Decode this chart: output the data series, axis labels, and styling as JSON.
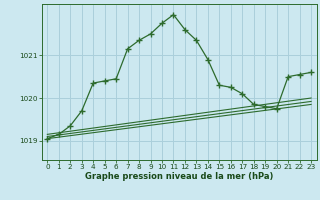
{
  "title": "Graphe pression niveau de la mer (hPa)",
  "bg_color": "#cce8f0",
  "grid_color": "#aacfdb",
  "line_color": "#2d6b2d",
  "marker": "+",
  "xlim": [
    -0.5,
    23.5
  ],
  "ylim": [
    1018.55,
    1022.2
  ],
  "yticks": [
    1019,
    1020,
    1021
  ],
  "xticks": [
    0,
    1,
    2,
    3,
    4,
    5,
    6,
    7,
    8,
    9,
    10,
    11,
    12,
    13,
    14,
    15,
    16,
    17,
    18,
    19,
    20,
    21,
    22,
    23
  ],
  "main_series_x": [
    0,
    1,
    2,
    3,
    4,
    5,
    6,
    7,
    8,
    9,
    10,
    11,
    12,
    13,
    14,
    15,
    16,
    17,
    18,
    19,
    20,
    21,
    22,
    23
  ],
  "main_series_y": [
    1019.05,
    1019.15,
    1019.35,
    1019.7,
    1020.35,
    1020.4,
    1020.45,
    1021.15,
    1021.35,
    1021.5,
    1021.75,
    1021.95,
    1021.6,
    1021.35,
    1020.9,
    1020.3,
    1020.25,
    1020.1,
    1019.85,
    1019.8,
    1019.75,
    1020.5,
    1020.55,
    1020.6
  ],
  "flat_series1_x": [
    0,
    23
  ],
  "flat_series1_y": [
    1019.05,
    1019.85
  ],
  "flat_series2_x": [
    0,
    23
  ],
  "flat_series2_y": [
    1019.1,
    1019.92
  ],
  "flat_series3_x": [
    0,
    23
  ],
  "flat_series3_y": [
    1019.15,
    1020.0
  ],
  "tick_fontsize": 5.2,
  "label_fontsize": 6.0
}
